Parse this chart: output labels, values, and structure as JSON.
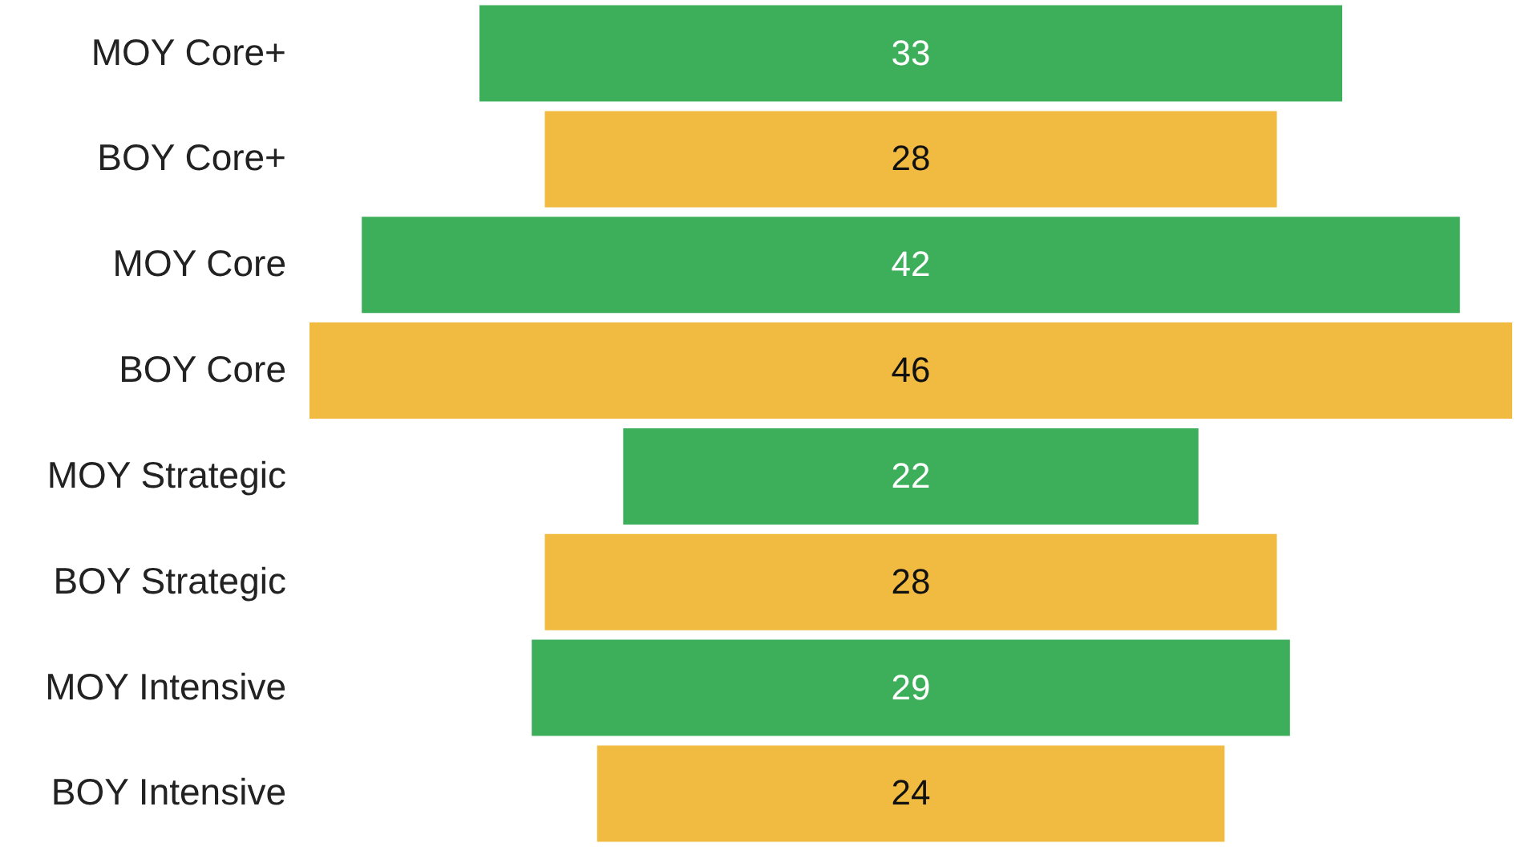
{
  "chart_data": {
    "type": "other",
    "categories": [
      "MOY Core+",
      "BOY Core+",
      "MOY Core",
      "BOY Core",
      "MOY Strategic",
      "BOY Strategic",
      "MOY Intensive",
      "BOY Intensive"
    ],
    "values": [
      33,
      28,
      42,
      46,
      22,
      28,
      29,
      24
    ],
    "colors": [
      "#3daf5a",
      "#f0bb40",
      "#3daf5a",
      "#f0bb40",
      "#3daf5a",
      "#f0bb40",
      "#3daf5a",
      "#f0bb40"
    ],
    "data_labels": true
  }
}
